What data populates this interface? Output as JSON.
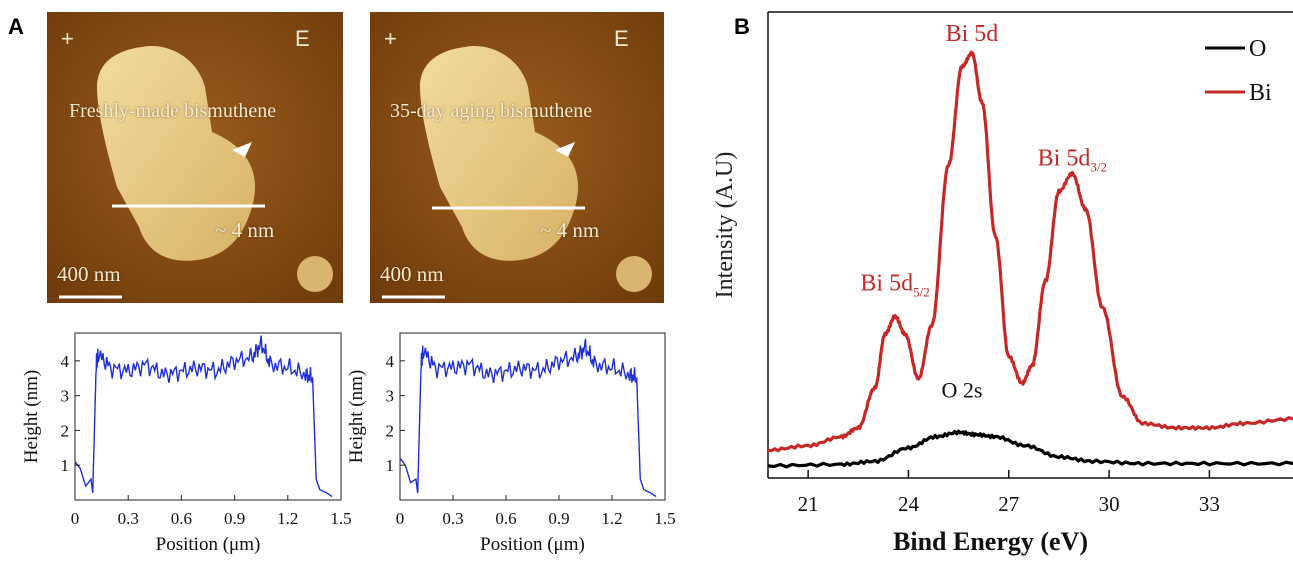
{
  "figure": {
    "panel_a_label": "A",
    "panel_b_label": "B"
  },
  "afm_images": [
    {
      "caption": "Freshly-made bismuthene",
      "thickness_label": "~ 4 nm",
      "scale_label": "400 nm",
      "corner_left": "+",
      "corner_right": "E"
    },
    {
      "caption": "35-day aging bismuthene",
      "thickness_label": "~ 4 nm",
      "scale_label": "400 nm",
      "corner_left": "+",
      "corner_right": "E"
    }
  ],
  "colors": {
    "afm_background": "#8a4e12",
    "afm_flake": "#e9d08a",
    "profile_line": "#1f2fd6",
    "bi_series": "#c62828",
    "o_series": "#000000"
  },
  "chart_data": [
    {
      "type": "line",
      "xlabel": "Position (μm)",
      "ylabel": "Height (nm)",
      "xlim": [
        0,
        1.5
      ],
      "ylim": [
        0,
        4.8
      ],
      "xticks": [
        "0",
        "0.3",
        "0.6",
        "0.9",
        "1.2",
        "1.5"
      ],
      "yticks": [
        "1",
        "2",
        "3",
        "4"
      ],
      "series": [
        {
          "x": [
            0,
            0.03,
            0.06,
            0.09,
            0.1,
            0.12,
            0.13,
            0.2,
            0.3,
            0.4,
            0.5,
            0.6,
            0.7,
            0.8,
            0.9,
            1.0,
            1.05,
            1.1,
            1.2,
            1.3,
            1.34,
            1.36,
            1.38,
            1.42,
            1.45
          ],
          "values": [
            1.1,
            0.9,
            0.4,
            0.6,
            0.2,
            4.0,
            4.2,
            3.8,
            3.7,
            3.9,
            3.6,
            3.7,
            3.8,
            3.7,
            4.0,
            4.1,
            4.5,
            3.9,
            3.8,
            3.6,
            3.5,
            0.6,
            0.3,
            0.2,
            0.1
          ]
        }
      ]
    },
    {
      "type": "line",
      "xlabel": "Position (μm)",
      "ylabel": "Height (nm)",
      "xlim": [
        0,
        1.5
      ],
      "ylim": [
        0,
        4.8
      ],
      "xticks": [
        "0",
        "0.3",
        "0.6",
        "0.9",
        "1.2",
        "1.5"
      ],
      "yticks": [
        "1",
        "2",
        "3",
        "4"
      ],
      "series": [
        {
          "x": [
            0,
            0.03,
            0.06,
            0.09,
            0.1,
            0.12,
            0.13,
            0.2,
            0.3,
            0.4,
            0.5,
            0.6,
            0.7,
            0.8,
            0.9,
            1.0,
            1.05,
            1.1,
            1.2,
            1.3,
            1.34,
            1.36,
            1.38,
            1.42,
            1.45
          ],
          "values": [
            1.2,
            1.0,
            0.5,
            0.6,
            0.2,
            4.0,
            4.3,
            3.8,
            3.8,
            3.9,
            3.6,
            3.7,
            3.8,
            3.7,
            4.0,
            4.1,
            4.4,
            3.9,
            3.8,
            3.6,
            3.5,
            0.6,
            0.3,
            0.2,
            0.1
          ]
        }
      ]
    },
    {
      "type": "line",
      "xlabel": "Bind Energy (eV)",
      "ylabel": "Intensity (A.U)",
      "xlim": [
        19.8,
        35.5
      ],
      "ylim": [
        0,
        1.0
      ],
      "xticks": [
        "21",
        "24",
        "27",
        "30",
        "33"
      ],
      "legend": {
        "position": "top-right",
        "entries": [
          "O",
          "Bi"
        ]
      },
      "annotations": [
        {
          "text": "Bi 5d",
          "sub": "",
          "x": 25.9,
          "y": 0.94
        },
        {
          "text": "Bi 5d",
          "sub": "3/2",
          "x": 28.9,
          "y": 0.66
        },
        {
          "text": "Bi 5d",
          "sub": "5/2",
          "x": 23.6,
          "y": 0.38
        },
        {
          "text": "O 2s",
          "sub": "",
          "x": 25.6,
          "y": 0.14
        }
      ],
      "series": [
        {
          "name": "Bi",
          "x": [
            19.8,
            21,
            22,
            22.5,
            23.0,
            23.3,
            23.6,
            23.9,
            24.3,
            24.7,
            25.2,
            25.6,
            25.9,
            26.2,
            26.6,
            27.0,
            27.4,
            27.7,
            28.1,
            28.5,
            28.9,
            29.3,
            29.8,
            30.4,
            31.0,
            32.0,
            33.0,
            34.0,
            35.5
          ],
          "values": [
            0.04,
            0.05,
            0.07,
            0.09,
            0.18,
            0.3,
            0.34,
            0.3,
            0.2,
            0.32,
            0.68,
            0.9,
            0.93,
            0.82,
            0.52,
            0.25,
            0.19,
            0.23,
            0.42,
            0.62,
            0.66,
            0.58,
            0.36,
            0.16,
            0.1,
            0.09,
            0.09,
            0.1,
            0.11
          ]
        },
        {
          "name": "O",
          "x": [
            19.8,
            22,
            23,
            24,
            24.8,
            25.5,
            26.0,
            26.6,
            27.5,
            28.5,
            29.5,
            31,
            33,
            35.5
          ],
          "values": [
            0.005,
            0.008,
            0.015,
            0.045,
            0.07,
            0.08,
            0.075,
            0.07,
            0.05,
            0.025,
            0.015,
            0.01,
            0.01,
            0.01
          ]
        }
      ]
    }
  ]
}
